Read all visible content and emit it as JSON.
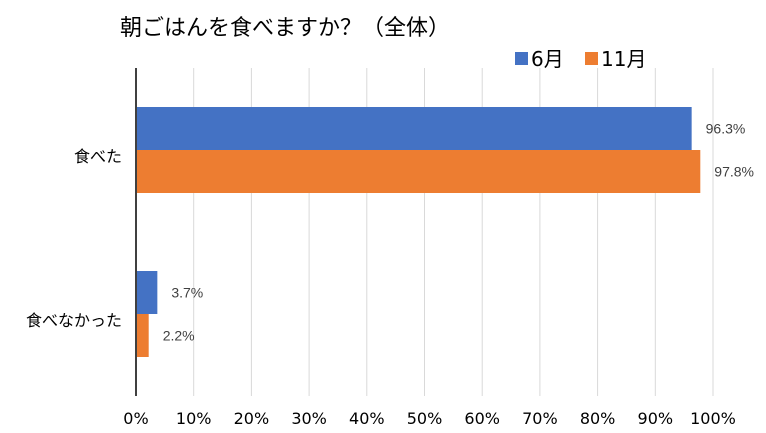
{
  "chart_data": {
    "type": "bar",
    "orientation": "horizontal",
    "title": "朝ごはんを食べますか？（全体）",
    "categories": [
      "食べた",
      "食べなかった"
    ],
    "series": [
      {
        "name": "6月",
        "color": "#4472C4",
        "values": [
          96.3,
          3.7
        ],
        "labels": [
          "96.3%",
          "3.7%"
        ]
      },
      {
        "name": "11月",
        "color": "#ED7D31",
        "values": [
          97.8,
          2.2
        ],
        "labels": [
          "97.8%",
          "2.2%"
        ]
      }
    ],
    "xlim": [
      0,
      100
    ],
    "xticks": [
      0,
      10,
      20,
      30,
      40,
      50,
      60,
      70,
      80,
      90,
      100
    ],
    "xtick_labels": [
      "0%",
      "10%",
      "20%",
      "30%",
      "40%",
      "50%",
      "60%",
      "70%",
      "80%",
      "90%",
      "100%"
    ],
    "grid": true,
    "legend_position": "top-right"
  }
}
